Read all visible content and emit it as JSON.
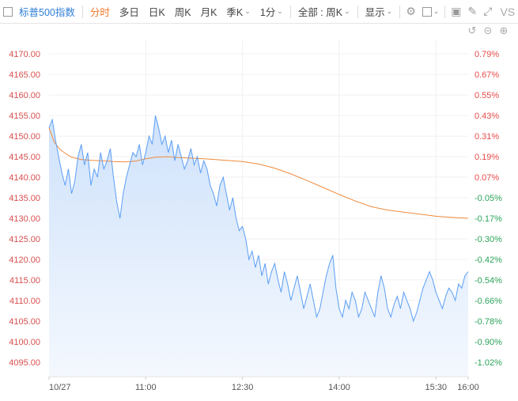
{
  "toolbar": {
    "title": "标普500指数",
    "tabs": [
      "分时",
      "多日",
      "日K",
      "周K",
      "月K",
      "季K"
    ],
    "active_tab": "分时",
    "interval": "1分",
    "scope": "全部 : 周K",
    "display": "显示",
    "vs": "VS"
  },
  "colors": {
    "price_line": "#5b9ef4",
    "avg_line": "#f08a3c",
    "up_label": "#e84a4a",
    "down_label": "#2ba35a",
    "left_label": "#d94f4f",
    "area_top": "#cfe2fb",
    "area_bottom": "#f4f8fe"
  },
  "chart_data": {
    "type": "line",
    "x_ticks": [
      "10/27",
      "11:00",
      "12:30",
      "14:00",
      "15:30",
      "16:00"
    ],
    "x_tick_minutes": [
      0,
      90,
      180,
      270,
      360,
      390
    ],
    "x_range_minutes": [
      0,
      390
    ],
    "ylim": [
      4091.5,
      4173.5
    ],
    "y_ticks_left": [
      "4170.00",
      "4165.00",
      "4160.00",
      "4155.00",
      "4150.00",
      "4145.00",
      "4140.00",
      "4135.00",
      "4130.00",
      "4125.00",
      "4120.00",
      "4115.00",
      "4110.00",
      "4105.00",
      "4100.00",
      "4095.00"
    ],
    "y_ticks_right": [
      "0.79%",
      "0.67%",
      "0.55%",
      "0.43%",
      "0.31%",
      "0.19%",
      "0.07%",
      "-0.05%",
      "-0.17%",
      "-0.30%",
      "-0.42%",
      "-0.54%",
      "-0.66%",
      "-0.78%",
      "-0.90%",
      "-1.02%"
    ],
    "series": [
      {
        "x": [
          0,
          3,
          6,
          9,
          12,
          15,
          18,
          21,
          24,
          27,
          30,
          33,
          36,
          39,
          42,
          45,
          48,
          51,
          54,
          57,
          60,
          63,
          66,
          69,
          72,
          75,
          78,
          81,
          84,
          87,
          90,
          93,
          96,
          99,
          102,
          105,
          108,
          111,
          114,
          117,
          120,
          123,
          126,
          129,
          132,
          135,
          138,
          141,
          144,
          147,
          150,
          153,
          156,
          159,
          162,
          165,
          168,
          171,
          174,
          177,
          180,
          183,
          186,
          189,
          192,
          195,
          198,
          201,
          204,
          207,
          210,
          213,
          216,
          219,
          222,
          225,
          228,
          231,
          234,
          237,
          240,
          243,
          246,
          249,
          252,
          255,
          258,
          261,
          264,
          267,
          270,
          273,
          276,
          279,
          282,
          285,
          288,
          291,
          294,
          297,
          300,
          303,
          306,
          309,
          312,
          315,
          318,
          321,
          324,
          327,
          330,
          333,
          336,
          339,
          342,
          345,
          348,
          351,
          354,
          357,
          360,
          363,
          366,
          369,
          372,
          375,
          378,
          381,
          384,
          387,
          390
        ],
        "y": [
          4152,
          4154,
          4149,
          4145,
          4141,
          4138,
          4142,
          4136,
          4139,
          4145,
          4148,
          4143,
          4146,
          4138,
          4142,
          4140,
          4146,
          4142,
          4144,
          4147,
          4140,
          4134,
          4130,
          4136,
          4140,
          4143,
          4146,
          4145,
          4148,
          4143,
          4146,
          4150,
          4148,
          4155,
          4152,
          4148,
          4150,
          4146,
          4149,
          4144,
          4148,
          4145,
          4142,
          4144,
          4147,
          4143,
          4145,
          4141,
          4144,
          4142,
          4138,
          4136,
          4133,
          4138,
          4140,
          4136,
          4132,
          4135,
          4130,
          4127,
          4128,
          4125,
          4120,
          4122,
          4118,
          4121,
          4116,
          4119,
          4114,
          4117,
          4119,
          4115,
          4112,
          4117,
          4114,
          4110,
          4113,
          4116,
          4112,
          4108,
          4111,
          4114,
          4110,
          4106,
          4108,
          4112,
          4116,
          4119,
          4121,
          4113,
          4108,
          4106,
          4110,
          4108,
          4112,
          4110,
          4106,
          4108,
          4112,
          4110,
          4108,
          4106,
          4112,
          4116,
          4113,
          4108,
          4106,
          4109,
          4111,
          4108,
          4112,
          4110,
          4108,
          4105,
          4107,
          4110,
          4113,
          4115,
          4117,
          4115,
          4112,
          4110,
          4108,
          4111,
          4113,
          4112,
          4110,
          4114,
          4113,
          4116,
          4117
        ],
        "color": "#5b9ef4"
      },
      {
        "x": [
          0,
          5,
          10,
          15,
          20,
          25,
          30,
          40,
          50,
          60,
          70,
          80,
          90,
          100,
          110,
          120,
          135,
          150,
          165,
          180,
          195,
          210,
          225,
          240,
          255,
          270,
          285,
          300,
          315,
          330,
          345,
          360,
          375,
          390
        ],
        "y": [
          4152,
          4148.5,
          4146.8,
          4145.8,
          4145,
          4144.6,
          4144.3,
          4144.1,
          4144,
          4143.8,
          4143.7,
          4143.9,
          4144.5,
          4144.9,
          4145,
          4144.8,
          4144.6,
          4144.4,
          4144.1,
          4143.8,
          4143.2,
          4142.2,
          4140.8,
          4139.2,
          4137.5,
          4135.8,
          4134.2,
          4132.8,
          4132,
          4131.5,
          4131,
          4130.5,
          4130.2,
          4130
        ],
        "color": "#f08a3c"
      }
    ],
    "grid": true,
    "title": "",
    "xlabel": "",
    "ylabel": ""
  }
}
